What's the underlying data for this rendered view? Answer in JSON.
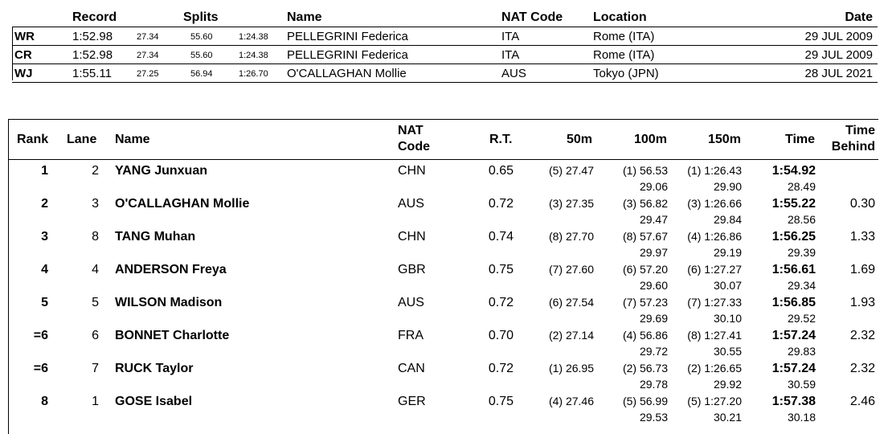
{
  "records": {
    "headers": {
      "record": "Record",
      "splits": "Splits",
      "name": "Name",
      "nat": "NAT Code",
      "location": "Location",
      "date": "Date"
    },
    "rows": [
      {
        "code": "WR",
        "time": "1:52.98",
        "s1": "27.34",
        "s2": "55.60",
        "s3": "1:24.38",
        "name": "PELLEGRINI Federica",
        "nat": "ITA",
        "location": "Rome (ITA)",
        "date": "29 JUL 2009"
      },
      {
        "code": "CR",
        "time": "1:52.98",
        "s1": "27.34",
        "s2": "55.60",
        "s3": "1:24.38",
        "name": "PELLEGRINI Federica",
        "nat": "ITA",
        "location": "Rome (ITA)",
        "date": "29 JUL 2009"
      },
      {
        "code": "WJ",
        "time": "1:55.11",
        "s1": "27.25",
        "s2": "56.94",
        "s3": "1:26.70",
        "name": "O'CALLAGHAN Mollie",
        "nat": "AUS",
        "location": "Tokyo (JPN)",
        "date": "28 JUL 2021"
      }
    ]
  },
  "results": {
    "headers": {
      "rank": "Rank",
      "lane": "Lane",
      "name": "Name",
      "nat1": "NAT",
      "nat2": "Code",
      "rt": "R.T.",
      "m50": "50m",
      "m100": "100m",
      "m150": "150m",
      "time": "Time",
      "behind1": "Time",
      "behind2": "Behind"
    },
    "rows": [
      {
        "rank": "1",
        "lane": "2",
        "name": "YANG Junxuan",
        "nat": "CHN",
        "rt": "0.65",
        "m50": "(5) 27.47",
        "m100": "(1) 56.53",
        "m100s": "29.06",
        "m150": "(1) 1:26.43",
        "m150s": "29.90",
        "time": "1:54.92",
        "times": "28.49",
        "behind": ""
      },
      {
        "rank": "2",
        "lane": "3",
        "name": "O'CALLAGHAN Mollie",
        "nat": "AUS",
        "rt": "0.72",
        "m50": "(3) 27.35",
        "m100": "(3) 56.82",
        "m100s": "29.47",
        "m150": "(3) 1:26.66",
        "m150s": "29.84",
        "time": "1:55.22",
        "times": "28.56",
        "behind": "0.30"
      },
      {
        "rank": "3",
        "lane": "8",
        "name": "TANG Muhan",
        "nat": "CHN",
        "rt": "0.74",
        "m50": "(8) 27.70",
        "m100": "(8) 57.67",
        "m100s": "29.97",
        "m150": "(4) 1:26.86",
        "m150s": "29.19",
        "time": "1:56.25",
        "times": "29.39",
        "behind": "1.33"
      },
      {
        "rank": "4",
        "lane": "4",
        "name": "ANDERSON Freya",
        "nat": "GBR",
        "rt": "0.75",
        "m50": "(7) 27.60",
        "m100": "(6) 57.20",
        "m100s": "29.60",
        "m150": "(6) 1:27.27",
        "m150s": "30.07",
        "time": "1:56.61",
        "times": "29.34",
        "behind": "1.69"
      },
      {
        "rank": "5",
        "lane": "5",
        "name": "WILSON Madison",
        "nat": "AUS",
        "rt": "0.72",
        "m50": "(6) 27.54",
        "m100": "(7) 57.23",
        "m100s": "29.69",
        "m150": "(7) 1:27.33",
        "m150s": "30.10",
        "time": "1:56.85",
        "times": "29.52",
        "behind": "1.93"
      },
      {
        "rank": "=6",
        "lane": "6",
        "name": "BONNET Charlotte",
        "nat": "FRA",
        "rt": "0.70",
        "m50": "(2) 27.14",
        "m100": "(4) 56.86",
        "m100s": "29.72",
        "m150": "(8) 1:27.41",
        "m150s": "30.55",
        "time": "1:57.24",
        "times": "29.83",
        "behind": "2.32"
      },
      {
        "rank": "=6",
        "lane": "7",
        "name": "RUCK Taylor",
        "nat": "CAN",
        "rt": "0.72",
        "m50": "(1) 26.95",
        "m100": "(2) 56.73",
        "m100s": "29.78",
        "m150": "(2) 1:26.65",
        "m150s": "29.92",
        "time": "1:57.24",
        "times": "30.59",
        "behind": "2.32"
      },
      {
        "rank": "8",
        "lane": "1",
        "name": "GOSE Isabel",
        "nat": "GER",
        "rt": "0.75",
        "m50": "(4) 27.46",
        "m100": "(5) 56.99",
        "m100s": "29.53",
        "m150": "(5) 1:27.20",
        "m150s": "30.21",
        "time": "1:57.38",
        "times": "30.18",
        "behind": "2.46"
      }
    ]
  }
}
